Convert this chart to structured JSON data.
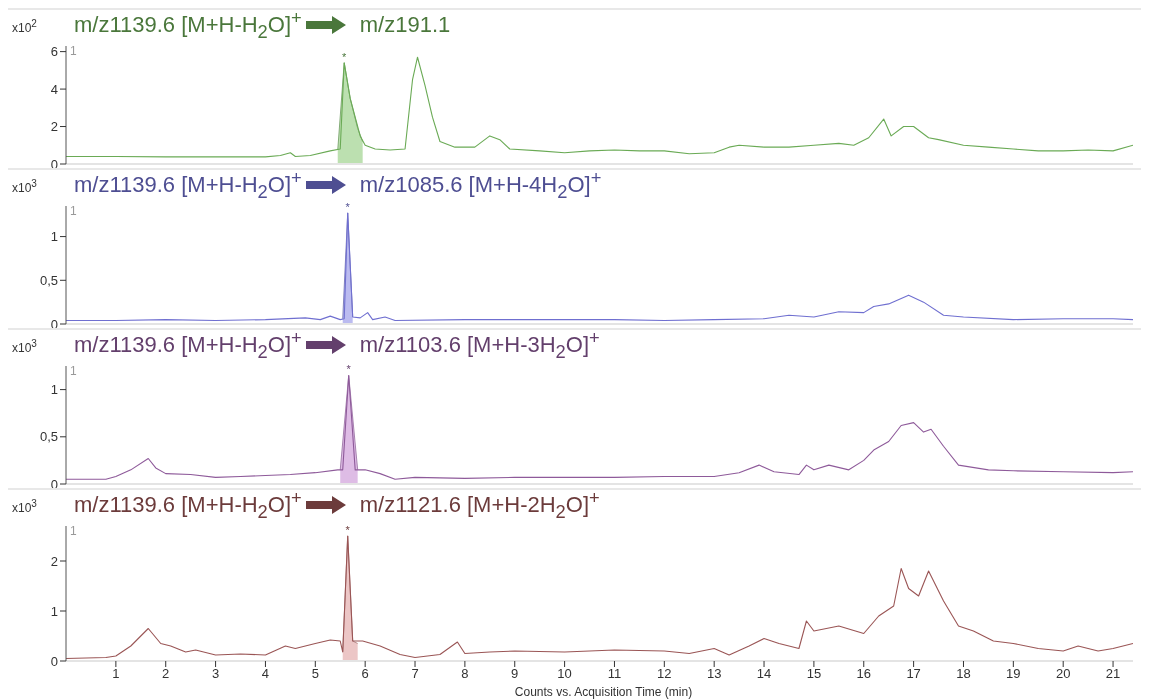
{
  "chart_data": [
    {
      "type": "line",
      "title": "m/z1139.6 [M+H-H$_{2}$O]$^{+}$",
      "subtitle": "m/z191.1",
      "ylabel": "x10$^{2}$",
      "xlim": [
        0,
        21.4
      ],
      "xticks": [
        1,
        2,
        3,
        4,
        5,
        6,
        7,
        8,
        9,
        10,
        11,
        12,
        13,
        14,
        15,
        16,
        17,
        18,
        19,
        20,
        21
      ],
      "ylim": [
        0,
        6.3
      ],
      "yticks": [
        0,
        2,
        4,
        6
      ],
      "tick_labels": "y",
      "grid": false,
      "marker": "none",
      "line_style": "solid",
      "annotations": [
        "1",
        {
          "text": "*",
          "x": 5.58,
          "y": 5.4
        }
      ],
      "series": [
        {
          "color": "#6aaa55",
          "x": [
            0,
            1,
            2,
            3,
            4,
            4.3,
            4.5,
            4.6,
            4.9,
            5.3,
            5.5,
            5.58,
            5.7,
            5.9,
            6.0,
            6.2,
            6.5,
            6.8,
            6.95,
            7.05,
            7.2,
            7.35,
            7.5,
            7.8,
            8.2,
            8.5,
            8.7,
            8.9,
            9.5,
            10,
            10.5,
            11,
            11.5,
            12,
            12.5,
            13,
            13.3,
            13.5,
            14,
            14.5,
            15,
            15.5,
            15.8,
            16.1,
            16.4,
            16.55,
            16.8,
            17.0,
            17.3,
            17.5,
            18,
            18.5,
            19,
            19.5,
            20,
            20.5,
            21,
            21.4
          ],
          "values": [
            0.4,
            0.4,
            0.38,
            0.38,
            0.38,
            0.45,
            0.6,
            0.4,
            0.45,
            0.7,
            0.8,
            5.4,
            3.5,
            1.5,
            1.0,
            0.8,
            0.75,
            0.8,
            4.5,
            5.7,
            4.2,
            2.5,
            1.2,
            0.9,
            0.9,
            1.5,
            1.3,
            0.8,
            0.7,
            0.6,
            0.7,
            0.75,
            0.7,
            0.7,
            0.55,
            0.6,
            0.9,
            1.0,
            0.9,
            0.9,
            1.0,
            1.1,
            1.0,
            1.4,
            2.4,
            1.5,
            2.0,
            2.0,
            1.4,
            1.3,
            1.0,
            0.9,
            0.8,
            0.7,
            0.7,
            0.75,
            0.7,
            1.0
          ]
        },
        {
          "type": "area",
          "color": "#8fcc7c",
          "x": [
            5.45,
            5.58,
            5.7,
            5.85,
            5.95
          ],
          "values": [
            0.75,
            5.4,
            3.5,
            1.9,
            1.2
          ]
        }
      ]
    },
    {
      "type": "line",
      "title": "m/z1139.6 [M+H-H$_{2}$O]$^{+}$",
      "subtitle": "m/z1085.6 [M+H-4H$_{2}$O]$^{+}$",
      "ylabel": "x10$^{3}$",
      "xlim": [
        0,
        21.4
      ],
      "xticks": [
        1,
        2,
        3,
        4,
        5,
        6,
        7,
        8,
        9,
        10,
        11,
        12,
        13,
        14,
        15,
        16,
        17,
        18,
        19,
        20,
        21
      ],
      "ylim": [
        0,
        1.35
      ],
      "yticks": [
        0,
        {
          "value": 0.5,
          "label": "0,5"
        },
        1
      ],
      "tick_labels": "y",
      "grid": false,
      "marker": "none",
      "line_style": "solid",
      "annotations": [
        "1",
        {
          "text": "*",
          "x": 5.65,
          "y": 1.27
        }
      ],
      "series": [
        {
          "color": "#6f6fd0",
          "x": [
            0,
            1,
            2,
            3,
            4,
            4.8,
            5.1,
            5.3,
            5.5,
            5.58,
            5.65,
            5.75,
            5.9,
            6.05,
            6.15,
            6.4,
            6.6,
            8,
            10,
            11,
            12,
            13,
            14,
            14.5,
            15,
            15.5,
            16,
            16.2,
            16.5,
            16.9,
            17.2,
            17.6,
            18,
            19,
            20,
            21,
            21.4
          ],
          "values": [
            0.04,
            0.04,
            0.05,
            0.04,
            0.05,
            0.07,
            0.05,
            0.09,
            0.05,
            0.06,
            1.27,
            0.08,
            0.07,
            0.13,
            0.05,
            0.08,
            0.04,
            0.05,
            0.05,
            0.05,
            0.04,
            0.05,
            0.06,
            0.1,
            0.08,
            0.14,
            0.13,
            0.2,
            0.23,
            0.33,
            0.25,
            0.1,
            0.08,
            0.05,
            0.06,
            0.06,
            0.05
          ]
        },
        {
          "type": "area",
          "color": "#8e8ee6",
          "x": [
            5.55,
            5.65,
            5.75
          ],
          "values": [
            0.06,
            1.27,
            0.08
          ]
        }
      ]
    },
    {
      "type": "line",
      "title": "m/z1139.6 [M+H-H$_{2}$O]$^{+}$",
      "subtitle": "m/z1103.6 [M+H-3H$_{2}$O]$^{+}$",
      "ylabel": "x10$^{3}$",
      "xlim": [
        0,
        21.4
      ],
      "xticks": [
        1,
        2,
        3,
        4,
        5,
        6,
        7,
        8,
        9,
        10,
        11,
        12,
        13,
        14,
        15,
        16,
        17,
        18,
        19,
        20,
        21
      ],
      "ylim": [
        0,
        1.25
      ],
      "yticks": [
        0,
        {
          "value": 0.5,
          "label": "0,5"
        },
        1
      ],
      "tick_labels": "y",
      "grid": false,
      "marker": "none",
      "line_style": "solid",
      "annotations": [
        "1",
        {
          "text": "*",
          "x": 5.67,
          "y": 1.15
        }
      ],
      "series": [
        {
          "color": "#8e5a9a",
          "x": [
            0,
            0.8,
            1,
            1.3,
            1.65,
            1.8,
            2,
            2.5,
            3,
            3.5,
            4,
            4.5,
            5,
            5.45,
            5.55,
            5.67,
            5.8,
            6,
            6.3,
            6.6,
            7,
            8,
            9,
            10,
            11,
            12,
            13,
            13.5,
            13.9,
            14.2,
            14.7,
            14.85,
            15,
            15.3,
            15.7,
            16,
            16.2,
            16.5,
            16.75,
            17,
            17.2,
            17.35,
            17.6,
            17.9,
            18.5,
            19,
            20,
            21,
            21.4
          ],
          "values": [
            0.05,
            0.05,
            0.08,
            0.15,
            0.27,
            0.17,
            0.11,
            0.1,
            0.07,
            0.08,
            0.09,
            0.1,
            0.12,
            0.15,
            0.15,
            1.15,
            0.15,
            0.15,
            0.11,
            0.05,
            0.07,
            0.06,
            0.07,
            0.07,
            0.07,
            0.08,
            0.08,
            0.12,
            0.2,
            0.13,
            0.1,
            0.2,
            0.15,
            0.2,
            0.15,
            0.25,
            0.36,
            0.45,
            0.62,
            0.65,
            0.55,
            0.58,
            0.4,
            0.2,
            0.15,
            0.14,
            0.13,
            0.12,
            0.13
          ]
        },
        {
          "type": "area",
          "color": "#c890d4",
          "x": [
            5.5,
            5.67,
            5.85
          ],
          "values": [
            0.15,
            1.15,
            0.15
          ]
        }
      ]
    },
    {
      "type": "line",
      "title": "m/z1139.6 [M+H-H$_{2}$O]$^{+}$",
      "subtitle": "m/z1121.6 [M+H-2H$_{2}$O]$^{+}$",
      "ylabel": "x10$^{3}$",
      "xlabel": "Counts vs. Acquisition Time (min)",
      "xlim": [
        0,
        21.4
      ],
      "xticks": [
        1,
        2,
        3,
        4,
        5,
        6,
        7,
        8,
        9,
        10,
        11,
        12,
        13,
        14,
        15,
        16,
        17,
        18,
        19,
        20,
        21
      ],
      "ylim": [
        0,
        2.7
      ],
      "yticks": [
        0,
        1,
        2
      ],
      "grid": false,
      "marker": "none",
      "line_style": "solid",
      "annotations": [
        "1",
        {
          "text": "*",
          "x": 5.65,
          "y": 2.5
        }
      ],
      "series": [
        {
          "color": "#9a5555",
          "x": [
            0,
            0.8,
            1,
            1.3,
            1.65,
            1.9,
            2.1,
            2.4,
            2.6,
            3,
            3.5,
            4,
            4.4,
            4.6,
            5,
            5.3,
            5.5,
            5.55,
            5.65,
            5.75,
            5.95,
            6.3,
            6.7,
            7,
            7.5,
            7.85,
            8,
            8.5,
            9,
            10,
            11,
            12,
            12.5,
            13,
            13.3,
            13.7,
            14,
            14.3,
            14.7,
            14.85,
            15,
            15.5,
            16,
            16.3,
            16.6,
            16.75,
            16.9,
            17.1,
            17.3,
            17.6,
            17.9,
            18.2,
            18.6,
            19,
            19.5,
            20,
            20.3,
            20.7,
            21,
            21.4
          ],
          "values": [
            0.05,
            0.07,
            0.1,
            0.3,
            0.65,
            0.35,
            0.3,
            0.18,
            0.22,
            0.12,
            0.14,
            0.12,
            0.3,
            0.25,
            0.35,
            0.42,
            0.4,
            0.18,
            2.5,
            0.4,
            0.4,
            0.3,
            0.13,
            0.07,
            0.13,
            0.38,
            0.15,
            0.18,
            0.2,
            0.18,
            0.22,
            0.2,
            0.15,
            0.25,
            0.12,
            0.3,
            0.45,
            0.35,
            0.25,
            0.8,
            0.6,
            0.7,
            0.55,
            0.9,
            1.1,
            1.85,
            1.45,
            1.3,
            1.8,
            1.2,
            0.7,
            0.6,
            0.4,
            0.35,
            0.25,
            0.2,
            0.3,
            0.2,
            0.25,
            0.35
          ]
        },
        {
          "type": "area",
          "color": "#e0a0a0",
          "x": [
            5.55,
            5.65,
            5.75,
            5.85
          ],
          "values": [
            0.18,
            2.5,
            0.4,
            0.35
          ]
        }
      ]
    }
  ]
}
